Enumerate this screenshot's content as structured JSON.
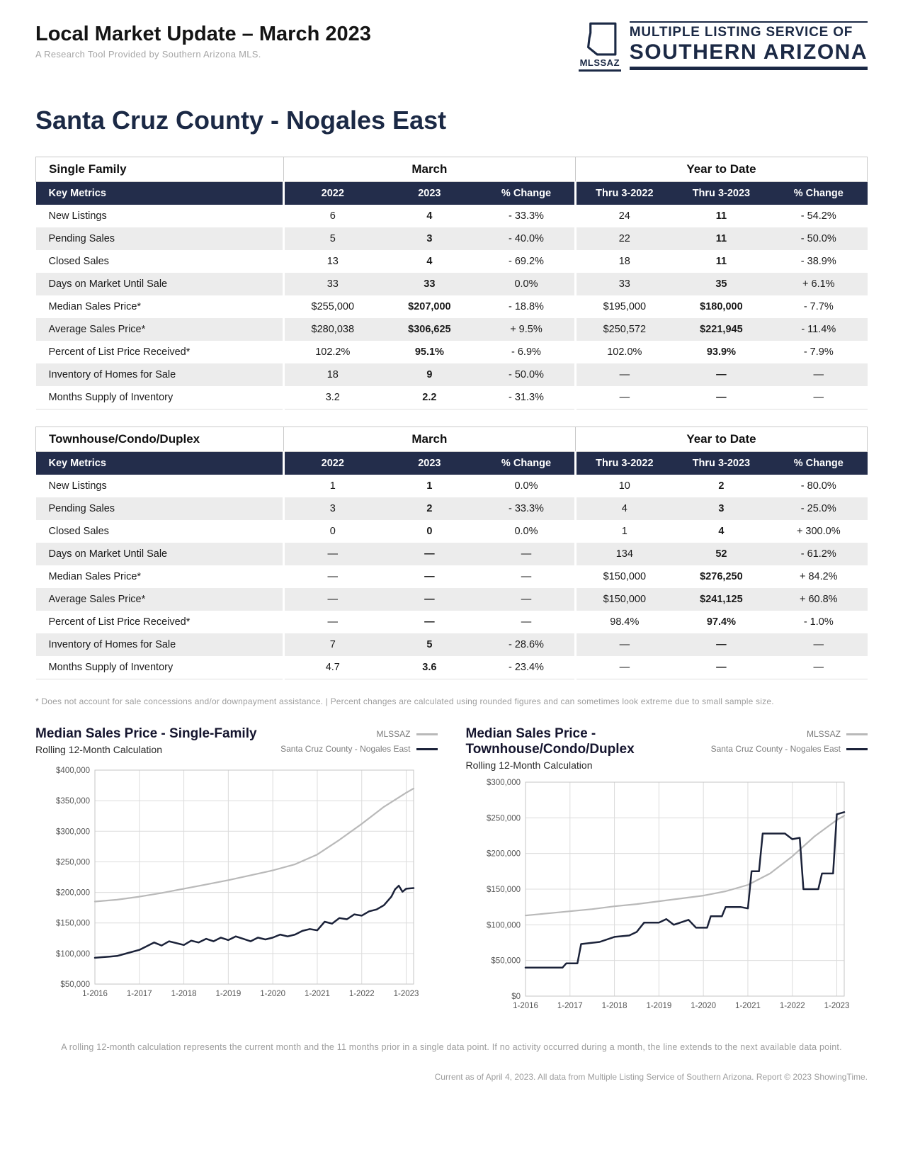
{
  "header": {
    "title": "Local Market Update – March 2023",
    "subtitle": "A Research Tool Provided by Southern Arizona MLS.",
    "logo": {
      "abbr": "MLSSAZ",
      "line1": "MULTIPLE LISTING SERVICE OF",
      "line2": "SOUTHERN ARIZONA"
    },
    "region_title": "Santa Cruz County - Nogales East"
  },
  "tables": [
    {
      "section_label": "Single Family",
      "group_headers": [
        "March",
        "Year to Date"
      ],
      "columns": [
        "Key Metrics",
        "2022",
        "2023",
        "% Change",
        "Thru 3-2022",
        "Thru 3-2023",
        "% Change"
      ],
      "rows": [
        {
          "metric": "New Listings",
          "values": [
            "6",
            "4",
            "- 33.3%",
            "24",
            "11",
            "- 54.2%"
          ]
        },
        {
          "metric": "Pending Sales",
          "values": [
            "5",
            "3",
            "- 40.0%",
            "22",
            "11",
            "- 50.0%"
          ]
        },
        {
          "metric": "Closed Sales",
          "values": [
            "13",
            "4",
            "- 69.2%",
            "18",
            "11",
            "- 38.9%"
          ]
        },
        {
          "metric": "Days on Market Until Sale",
          "values": [
            "33",
            "33",
            "0.0%",
            "33",
            "35",
            "+ 6.1%"
          ]
        },
        {
          "metric": "Median Sales Price*",
          "values": [
            "$255,000",
            "$207,000",
            "- 18.8%",
            "$195,000",
            "$180,000",
            "- 7.7%"
          ]
        },
        {
          "metric": "Average Sales Price*",
          "values": [
            "$280,038",
            "$306,625",
            "+ 9.5%",
            "$250,572",
            "$221,945",
            "- 11.4%"
          ]
        },
        {
          "metric": "Percent of List Price Received*",
          "values": [
            "102.2%",
            "95.1%",
            "- 6.9%",
            "102.0%",
            "93.9%",
            "- 7.9%"
          ]
        },
        {
          "metric": "Inventory of Homes for Sale",
          "values": [
            "18",
            "9",
            "- 50.0%",
            "—",
            "—",
            "—"
          ]
        },
        {
          "metric": "Months Supply of Inventory",
          "values": [
            "3.2",
            "2.2",
            "- 31.3%",
            "—",
            "—",
            "—"
          ]
        }
      ]
    },
    {
      "section_label": "Townhouse/Condo/Duplex",
      "group_headers": [
        "March",
        "Year to Date"
      ],
      "columns": [
        "Key Metrics",
        "2022",
        "2023",
        "% Change",
        "Thru 3-2022",
        "Thru 3-2023",
        "% Change"
      ],
      "rows": [
        {
          "metric": "New Listings",
          "values": [
            "1",
            "1",
            "0.0%",
            "10",
            "2",
            "- 80.0%"
          ]
        },
        {
          "metric": "Pending Sales",
          "values": [
            "3",
            "2",
            "- 33.3%",
            "4",
            "3",
            "- 25.0%"
          ]
        },
        {
          "metric": "Closed Sales",
          "values": [
            "0",
            "0",
            "0.0%",
            "1",
            "4",
            "+ 300.0%"
          ]
        },
        {
          "metric": "Days on Market Until Sale",
          "values": [
            "—",
            "—",
            "—",
            "134",
            "52",
            "- 61.2%"
          ]
        },
        {
          "metric": "Median Sales Price*",
          "values": [
            "—",
            "—",
            "—",
            "$150,000",
            "$276,250",
            "+ 84.2%"
          ]
        },
        {
          "metric": "Average Sales Price*",
          "values": [
            "—",
            "—",
            "—",
            "$150,000",
            "$241,125",
            "+ 60.8%"
          ]
        },
        {
          "metric": "Percent of List Price Received*",
          "values": [
            "—",
            "—",
            "—",
            "98.4%",
            "97.4%",
            "- 1.0%"
          ]
        },
        {
          "metric": "Inventory of Homes for Sale",
          "values": [
            "7",
            "5",
            "- 28.6%",
            "—",
            "—",
            "—"
          ]
        },
        {
          "metric": "Months Supply of Inventory",
          "values": [
            "4.7",
            "3.6",
            "- 23.4%",
            "—",
            "—",
            "—"
          ]
        }
      ]
    }
  ],
  "footnote": "* Does not account for sale concessions and/or downpayment assistance. | Percent changes are calculated using rounded figures and can sometimes look extreme due to small sample size.",
  "chart_data": [
    {
      "type": "line",
      "title": "Median Sales Price - Single-Family",
      "subtitle": "Rolling 12-Month Calculation",
      "xlabel": "",
      "ylabel": "",
      "legend": [
        {
          "name": "MLSSAZ",
          "color": "#b9b9b9"
        },
        {
          "name": "Santa Cruz County - Nogales East",
          "color": "#1b2239"
        }
      ],
      "xlim": [
        0,
        86
      ],
      "ylim": [
        50000,
        400000
      ],
      "ytick_values": [
        50000,
        100000,
        150000,
        200000,
        250000,
        300000,
        350000,
        400000
      ],
      "ytick_labels": [
        "$50,000",
        "$100,000",
        "$150,000",
        "$200,000",
        "$250,000",
        "$300,000",
        "$350,000",
        "$400,000"
      ],
      "xtick_values": [
        0,
        12,
        24,
        36,
        48,
        60,
        72,
        84
      ],
      "xtick_labels": [
        "1-2016",
        "1-2017",
        "1-2018",
        "1-2019",
        "1-2020",
        "1-2021",
        "1-2022",
        "1-2023"
      ],
      "series": [
        {
          "name": "MLSSAZ",
          "color": "#b9b9b9",
          "width": 2.2,
          "points": [
            [
              0,
              185000
            ],
            [
              6,
              188000
            ],
            [
              12,
              193000
            ],
            [
              18,
              199000
            ],
            [
              24,
              206000
            ],
            [
              30,
              213000
            ],
            [
              36,
              220000
            ],
            [
              42,
              228000
            ],
            [
              48,
              236000
            ],
            [
              54,
              246000
            ],
            [
              60,
              262000
            ],
            [
              66,
              286000
            ],
            [
              72,
              312000
            ],
            [
              78,
              340000
            ],
            [
              84,
              363000
            ],
            [
              86,
              370000
            ]
          ]
        },
        {
          "name": "Santa Cruz County - Nogales East",
          "color": "#1b2239",
          "width": 2.5,
          "points": [
            [
              0,
              93000
            ],
            [
              2,
              94000
            ],
            [
              4,
              95000
            ],
            [
              6,
              96000
            ],
            [
              9,
              101000
            ],
            [
              12,
              106000
            ],
            [
              14,
              112000
            ],
            [
              16,
              118000
            ],
            [
              18,
              113000
            ],
            [
              20,
              120000
            ],
            [
              22,
              117000
            ],
            [
              24,
              114000
            ],
            [
              26,
              121000
            ],
            [
              28,
              118000
            ],
            [
              30,
              124000
            ],
            [
              32,
              120000
            ],
            [
              34,
              126000
            ],
            [
              36,
              122000
            ],
            [
              38,
              128000
            ],
            [
              40,
              124000
            ],
            [
              42,
              120000
            ],
            [
              44,
              126000
            ],
            [
              46,
              123000
            ],
            [
              48,
              126000
            ],
            [
              50,
              131000
            ],
            [
              52,
              128000
            ],
            [
              54,
              131000
            ],
            [
              56,
              137000
            ],
            [
              58,
              140000
            ],
            [
              60,
              138000
            ],
            [
              62,
              152000
            ],
            [
              64,
              149000
            ],
            [
              66,
              158000
            ],
            [
              68,
              156000
            ],
            [
              70,
              164000
            ],
            [
              72,
              162000
            ],
            [
              74,
              169000
            ],
            [
              76,
              172000
            ],
            [
              78,
              179000
            ],
            [
              80,
              193000
            ],
            [
              81,
              205000
            ],
            [
              82,
              211000
            ],
            [
              83,
              201000
            ],
            [
              84,
              206000
            ],
            [
              86,
              207000
            ]
          ]
        }
      ]
    },
    {
      "type": "line",
      "title": "Median Sales Price - Townhouse/Condo/Duplex",
      "subtitle": "Rolling 12-Month Calculation",
      "xlabel": "",
      "ylabel": "",
      "legend": [
        {
          "name": "MLSSAZ",
          "color": "#b9b9b9"
        },
        {
          "name": "Santa Cruz County - Nogales East",
          "color": "#1b2239"
        }
      ],
      "xlim": [
        0,
        86
      ],
      "ylim": [
        0,
        300000
      ],
      "ytick_values": [
        0,
        50000,
        100000,
        150000,
        200000,
        250000,
        300000
      ],
      "ytick_labels": [
        "$0",
        "$50,000",
        "$100,000",
        "$150,000",
        "$200,000",
        "$250,000",
        "$300,000"
      ],
      "xtick_values": [
        0,
        12,
        24,
        36,
        48,
        60,
        72,
        84
      ],
      "xtick_labels": [
        "1-2016",
        "1-2017",
        "1-2018",
        "1-2019",
        "1-2020",
        "1-2021",
        "1-2022",
        "1-2023"
      ],
      "series": [
        {
          "name": "MLSSAZ",
          "color": "#b9b9b9",
          "width": 2.2,
          "points": [
            [
              0,
              113000
            ],
            [
              6,
              116000
            ],
            [
              12,
              119000
            ],
            [
              18,
              122000
            ],
            [
              24,
              126000
            ],
            [
              30,
              129000
            ],
            [
              36,
              133000
            ],
            [
              42,
              137000
            ],
            [
              48,
              141000
            ],
            [
              54,
              147000
            ],
            [
              60,
              156000
            ],
            [
              66,
              172000
            ],
            [
              72,
              196000
            ],
            [
              78,
              224000
            ],
            [
              84,
              247000
            ],
            [
              86,
              253000
            ]
          ]
        },
        {
          "name": "Santa Cruz County - Nogales East",
          "color": "#1b2239",
          "width": 2.5,
          "points": [
            [
              0,
              40000
            ],
            [
              10,
              40000
            ],
            [
              11,
              46000
            ],
            [
              14,
              46000
            ],
            [
              15,
              73000
            ],
            [
              20,
              76000
            ],
            [
              24,
              83000
            ],
            [
              28,
              85000
            ],
            [
              30,
              90000
            ],
            [
              32,
              103000
            ],
            [
              36,
              103000
            ],
            [
              38,
              108000
            ],
            [
              40,
              100000
            ],
            [
              44,
              107000
            ],
            [
              46,
              96000
            ],
            [
              49,
              96000
            ],
            [
              50,
              112000
            ],
            [
              53,
              112000
            ],
            [
              54,
              125000
            ],
            [
              58,
              125000
            ],
            [
              60,
              123000
            ],
            [
              61,
              175000
            ],
            [
              63,
              175000
            ],
            [
              64,
              228000
            ],
            [
              70,
              228000
            ],
            [
              72,
              220000
            ],
            [
              74,
              222000
            ],
            [
              75,
              150000
            ],
            [
              79,
              150000
            ],
            [
              80,
              172000
            ],
            [
              83,
              172000
            ],
            [
              84,
              255000
            ],
            [
              86,
              258000
            ]
          ]
        }
      ]
    }
  ],
  "foot_note": "A rolling 12-month calculation represents the current month and the 11 months prior in a single data point. If no activity occurred during a month, the line extends to the next available data point.",
  "credit": "Current as of April 4, 2023. All data from Multiple Listing Service of Southern Arizona. Report © 2023 ShowingTime."
}
